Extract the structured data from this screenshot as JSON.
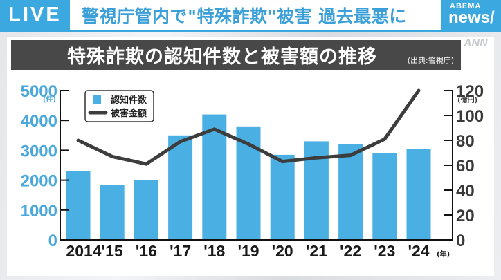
{
  "header": {
    "live_label": "LIVE",
    "headline": "警視庁管内で\"特殊詐欺\"被害 過去最悪に",
    "brand_top": "ABEMA",
    "brand_bottom": "news/",
    "watermark": "ANN"
  },
  "chart_panel": {
    "title": "特殊詐欺の認知件数と被害額の推移",
    "source": "(出典:警視庁)"
  },
  "colors": {
    "accent": "#3ca8e0",
    "bar": "#4aafe3",
    "line": "#3d3d3d",
    "left_axis_text": "#4aa8dc",
    "right_axis_text": "#3a3a3a",
    "title_bg": "#484848"
  },
  "chart_data": {
    "type": "bar+line",
    "title": "特殊詐欺の認知件数と被害額の推移",
    "source": "(出典:警視庁)",
    "categories": [
      "2014",
      "'15",
      "'16",
      "'17",
      "'18",
      "'19",
      "'20",
      "'21",
      "'22",
      "'23",
      "'24"
    ],
    "x_unit": "(年)",
    "series": [
      {
        "name": "認知件数",
        "type": "bar",
        "axis": "left",
        "values": [
          2300,
          1850,
          2000,
          3500,
          4200,
          3800,
          2850,
          3300,
          3200,
          2900,
          3050
        ]
      },
      {
        "name": "被害金額",
        "type": "line",
        "axis": "right",
        "values": [
          80,
          67,
          61,
          79,
          89,
          77,
          63,
          66,
          68,
          81,
          120
        ]
      }
    ],
    "left_axis": {
      "unit": "(件)",
      "ylim": [
        0,
        5000
      ],
      "ticks": [
        "0",
        "1000",
        "2000",
        "3000",
        "4000",
        "5000"
      ]
    },
    "right_axis": {
      "unit": "(億円)",
      "ylim": [
        0,
        120
      ],
      "ticks": [
        "0",
        "20",
        "40",
        "60",
        "80",
        "100",
        "120"
      ]
    },
    "legend": {
      "position": "top-left",
      "entries": [
        "認知件数",
        "被害金額"
      ]
    },
    "grid": false
  }
}
